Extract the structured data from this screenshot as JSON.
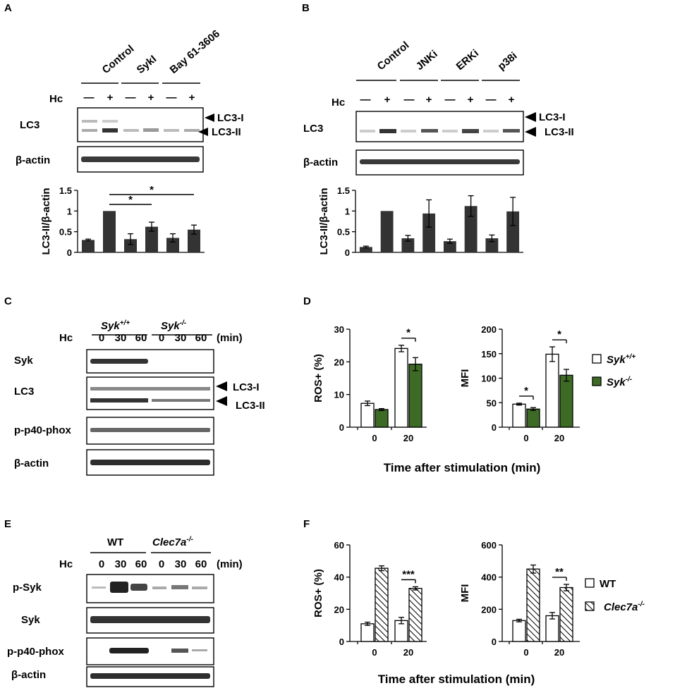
{
  "panels": {
    "A": {
      "letter": "A",
      "groups": [
        "Control",
        "SykI",
        "Bay 61-3606"
      ],
      "hc_label": "Hc",
      "hc_signs": [
        "—",
        "+",
        "—",
        "+",
        "—",
        "+"
      ],
      "blots": [
        "LC3",
        "β-actin"
      ],
      "markers": [
        "LC3-I",
        "LC3-II"
      ],
      "sig": [
        "*",
        "*"
      ]
    },
    "B": {
      "letter": "B",
      "groups": [
        "Control",
        "JNKi",
        "ERKi",
        "p38i"
      ],
      "hc_label": "Hc",
      "hc_signs": [
        "—",
        "+",
        "—",
        "+",
        "—",
        "+",
        "—",
        "+"
      ],
      "blots": [
        "LC3",
        "β-actin"
      ],
      "markers": [
        "LC3-I",
        "LC3-II"
      ]
    },
    "C": {
      "letter": "C",
      "groups": [
        {
          "base": "Syk",
          "sup": "+/+"
        },
        {
          "base": "Syk",
          "sup": "-/-"
        }
      ],
      "hc_label": "Hc",
      "times": [
        "0",
        "30",
        "60",
        "0",
        "30",
        "60"
      ],
      "unit": "(min)",
      "blots": [
        "Syk",
        "LC3",
        "p-p40-phox",
        "β-actin"
      ],
      "markers": [
        "LC3-I",
        "LC3-II"
      ]
    },
    "D": {
      "letter": "D",
      "xlabel": "Time after stimulation (min)",
      "legend": [
        {
          "base": "Syk",
          "sup": "+/+"
        },
        {
          "base": "Syk",
          "sup": "-/-"
        }
      ]
    },
    "E": {
      "letter": "E",
      "groups": [
        {
          "base": "WT",
          "sup": ""
        },
        {
          "base": "Clec7a",
          "sup": "-/-"
        }
      ],
      "hc_label": "Hc",
      "times": [
        "0",
        "30",
        "60",
        "0",
        "30",
        "60"
      ],
      "unit": "(min)",
      "blots": [
        "p-Syk",
        "Syk",
        "p-p40-phox",
        "β-actin"
      ]
    },
    "F": {
      "letter": "F",
      "xlabel": "Time after stimulation (min)",
      "legend": [
        {
          "base": "WT",
          "sup": ""
        },
        {
          "base": "Clec7a",
          "sup": "-/-"
        }
      ]
    }
  },
  "colors": {
    "bar_dark": "#333333",
    "syk_ko": "#3d6b26",
    "white": "#ffffff"
  },
  "chart_data": [
    {
      "id": "A",
      "type": "bar",
      "ylabel": "LC3-II/β-actin",
      "ylim": [
        0,
        1.5
      ],
      "yticks": [
        0,
        0.5,
        1,
        1.5
      ],
      "values": [
        0.3,
        1.0,
        0.32,
        0.62,
        0.35,
        0.55
      ],
      "errors": [
        0.02,
        0.0,
        0.13,
        0.11,
        0.1,
        0.11
      ],
      "significance": [
        {
          "from": 1,
          "to": 3,
          "label": "*"
        },
        {
          "from": 1,
          "to": 5,
          "label": "*"
        }
      ]
    },
    {
      "id": "B",
      "type": "bar",
      "ylabel": "LC3-II/β-actin",
      "ylim": [
        0,
        1.5
      ],
      "yticks": [
        0,
        0.5,
        1,
        1.5
      ],
      "values": [
        0.13,
        1.0,
        0.34,
        0.94,
        0.27,
        1.12,
        0.34,
        0.99
      ],
      "errors": [
        0.02,
        0.0,
        0.07,
        0.33,
        0.05,
        0.25,
        0.08,
        0.34
      ]
    },
    {
      "id": "D1",
      "type": "bar",
      "ylabel": "ROS+ (%)",
      "ylim": [
        0,
        30
      ],
      "yticks": [
        0,
        10,
        20,
        30
      ],
      "categories": [
        "0",
        "20"
      ],
      "series": [
        {
          "name": "Syk+/+",
          "values": [
            7.3,
            24.1
          ],
          "errors": [
            0.7,
            1.0
          ]
        },
        {
          "name": "Syk-/-",
          "values": [
            5.4,
            19.3
          ],
          "errors": [
            0.3,
            2.0
          ]
        }
      ],
      "significance": [
        {
          "category": 1,
          "label": "*"
        }
      ]
    },
    {
      "id": "D2",
      "type": "bar",
      "ylabel": "MFI",
      "ylim": [
        0,
        200
      ],
      "yticks": [
        0,
        50,
        100,
        150,
        200
      ],
      "categories": [
        "0",
        "20"
      ],
      "series": [
        {
          "name": "Syk+/+",
          "values": [
            47,
            149
          ],
          "errors": [
            2,
            15
          ]
        },
        {
          "name": "Syk-/-",
          "values": [
            37,
            106
          ],
          "errors": [
            3,
            12
          ]
        }
      ],
      "significance": [
        {
          "category": 0,
          "label": "*"
        },
        {
          "category": 1,
          "label": "*"
        }
      ]
    },
    {
      "id": "F1",
      "type": "bar",
      "ylabel": "ROS+ (%)",
      "ylim": [
        0,
        60
      ],
      "yticks": [
        0,
        20,
        40,
        60
      ],
      "categories": [
        "0",
        "20"
      ],
      "series": [
        {
          "name": "WT",
          "values": [
            11,
            13
          ],
          "errors": [
            1,
            2
          ]
        },
        {
          "name": "Clec7a-/-",
          "values": [
            45.5,
            33
          ],
          "errors": [
            1.5,
            1
          ]
        }
      ],
      "significance": [
        {
          "category": 1,
          "label": "***"
        }
      ]
    },
    {
      "id": "F2",
      "type": "bar",
      "ylabel": "MFI",
      "ylim": [
        0,
        600
      ],
      "yticks": [
        0,
        200,
        400,
        600
      ],
      "categories": [
        "0",
        "20"
      ],
      "series": [
        {
          "name": "WT",
          "values": [
            130,
            160
          ],
          "errors": [
            8,
            20
          ]
        },
        {
          "name": "Clec7a-/-",
          "values": [
            450,
            335
          ],
          "errors": [
            25,
            20
          ]
        }
      ],
      "significance": [
        {
          "category": 1,
          "label": "**"
        }
      ]
    }
  ]
}
